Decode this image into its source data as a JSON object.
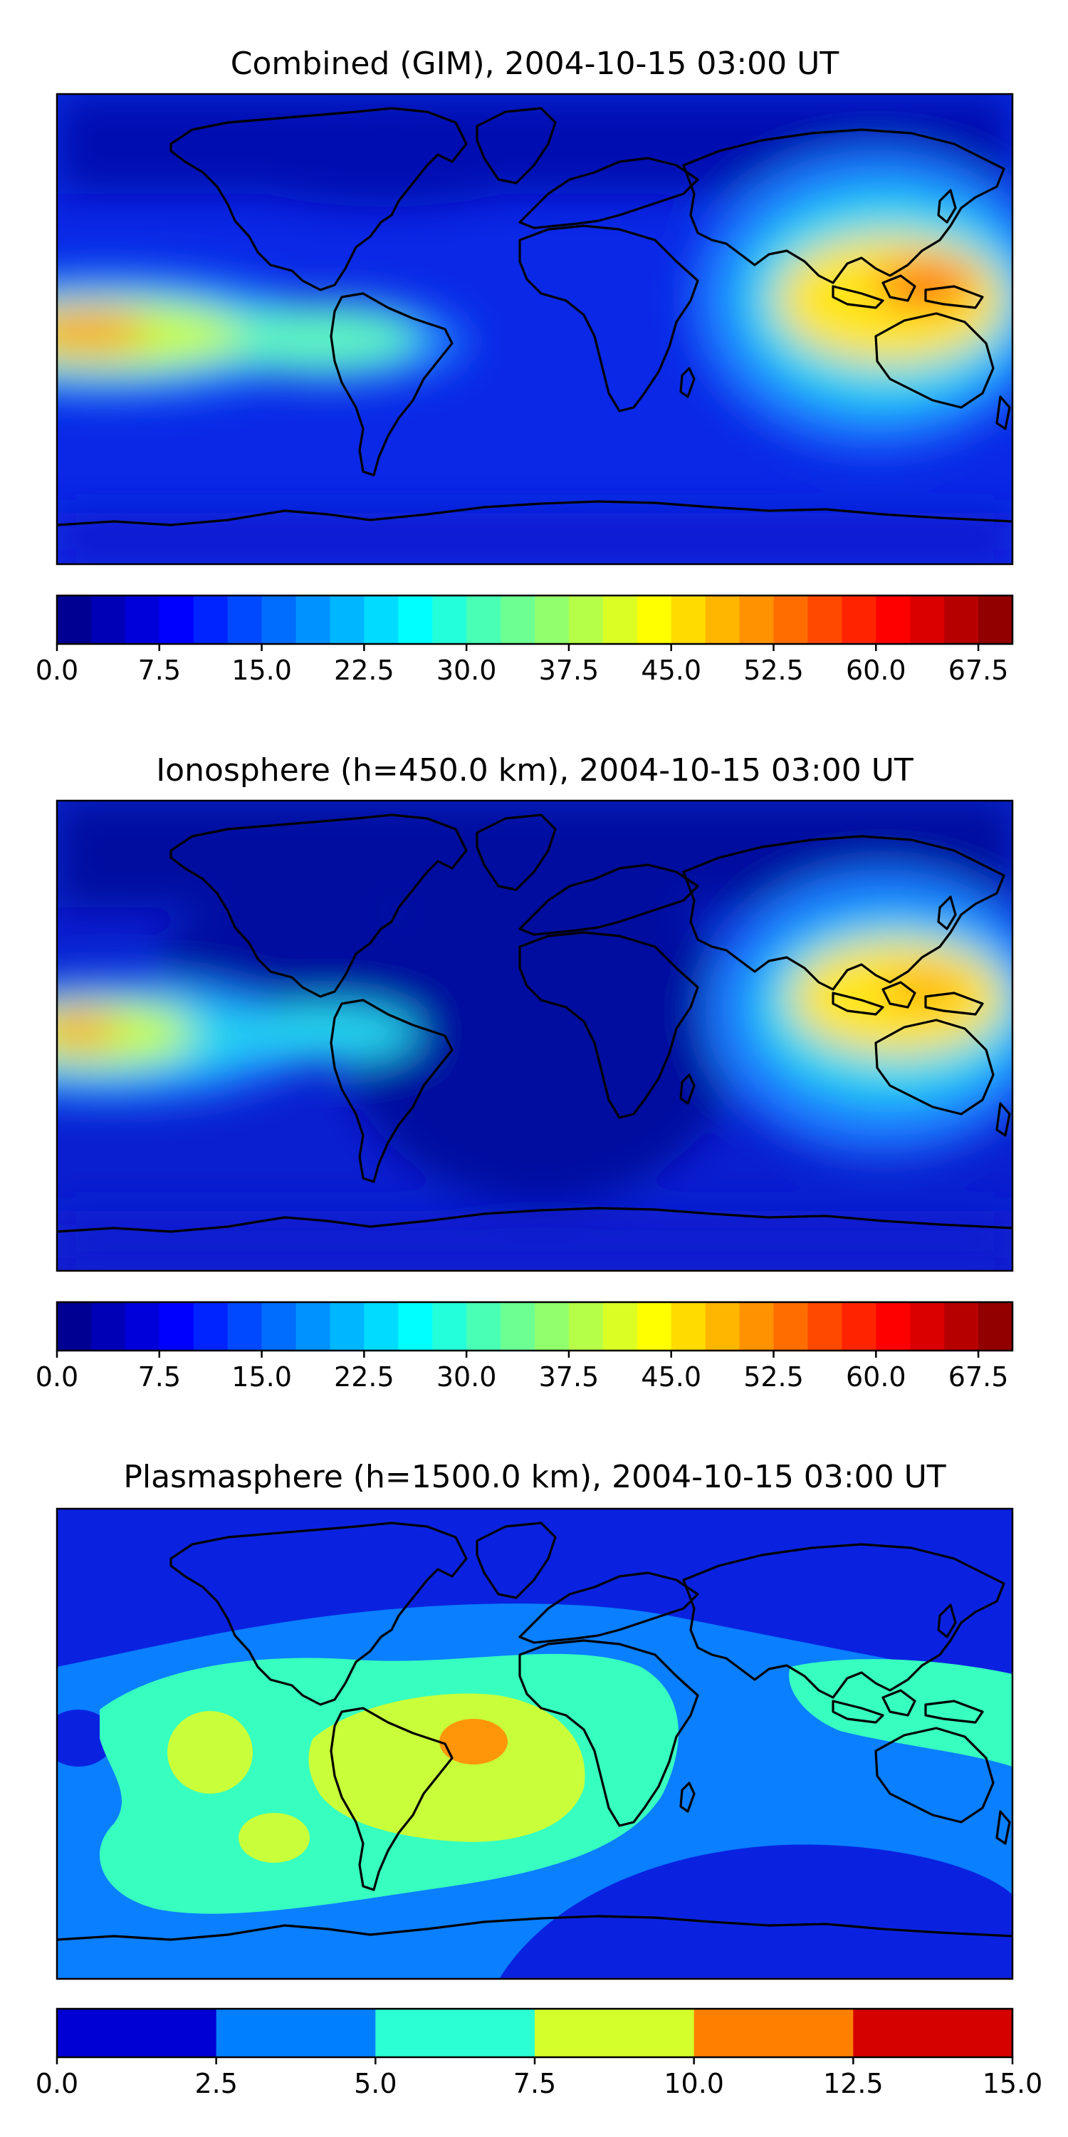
{
  "panels": [
    {
      "title": "Combined (GIM), 2004-10-15 03:00 UT",
      "colorbar": {
        "ticks": [
          "0.0",
          "7.5",
          "15.0",
          "22.5",
          "30.0",
          "37.5",
          "45.0",
          "52.5",
          "60.0",
          "67.5"
        ],
        "min": 0,
        "max": 70,
        "levels": 28,
        "colormap": "jet"
      },
      "features": [
        {
          "name": "Equatorial anomaly crest, western Pacific",
          "peak_value": 55,
          "lon": 135,
          "lat": 8
        },
        {
          "name": "Equatorial anomaly crest, eastern Pacific",
          "peak_value": 50,
          "lon": -175,
          "lat": -5
        },
        {
          "name": "South America band",
          "peak_value": 35,
          "lon": -70,
          "lat": -8
        }
      ]
    },
    {
      "title": "Ionosphere  (h=450.0 km), 2004-10-15 03:00 UT",
      "colorbar": {
        "ticks": [
          "0.0",
          "7.5",
          "15.0",
          "22.5",
          "30.0",
          "37.5",
          "45.0",
          "52.5",
          "60.0",
          "67.5"
        ],
        "min": 0,
        "max": 70,
        "levels": 28,
        "colormap": "jet"
      },
      "features": [
        {
          "name": "Equatorial anomaly crest, western Pacific",
          "peak_value": 47,
          "lon": 135,
          "lat": 10
        },
        {
          "name": "Equatorial anomaly crest, eastern Pacific",
          "peak_value": 45,
          "lon": -175,
          "lat": -3
        },
        {
          "name": "South America band",
          "peak_value": 28,
          "lon": -75,
          "lat": -5
        }
      ]
    },
    {
      "title": "Plasmasphere (h=1500.0 km), 2004-10-15 03:00 UT",
      "colorbar": {
        "ticks": [
          "0.0",
          "2.5",
          "5.0",
          "7.5",
          "10.0",
          "12.5",
          "15.0"
        ],
        "min": 0,
        "max": 15,
        "levels": 6,
        "colormap": "jet"
      },
      "features": [
        {
          "name": "Maximum over South Atlantic",
          "peak_value": 11,
          "lon": -25,
          "lat": 2
        },
        {
          "name": "Elevated band South America / Atlantic",
          "peak_value": 8.5,
          "lon": -40,
          "lat": -5
        },
        {
          "name": "Low region Southern Ocean",
          "peak_value": 1.5,
          "lon": 100,
          "lat": -45
        }
      ]
    }
  ],
  "map": {
    "projection": "equirectangular",
    "lon_range": [
      -180,
      180
    ],
    "lat_range": [
      -90,
      90
    ],
    "coastlines": true
  }
}
